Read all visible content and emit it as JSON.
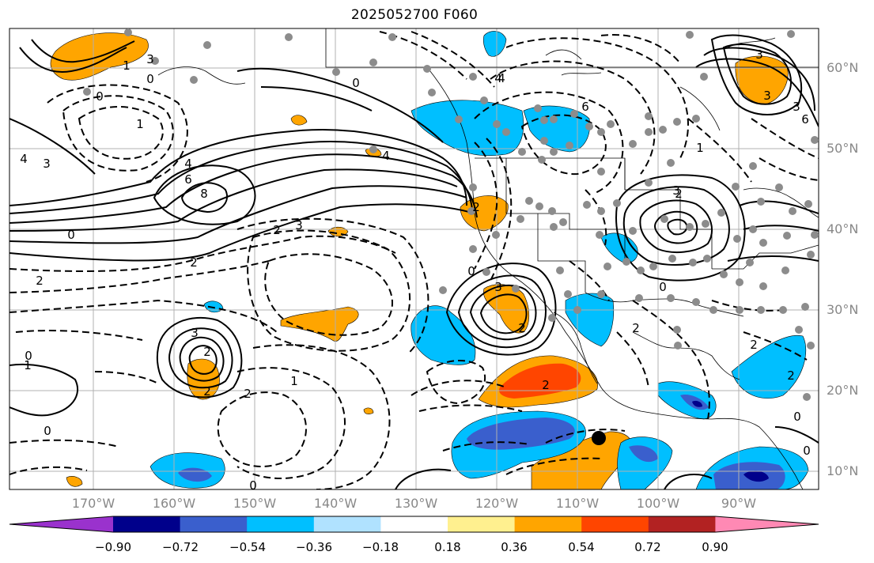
{
  "title": "2025052700 F060",
  "lat_labels": [
    "60°N",
    "50°N",
    "40°N",
    "30°N",
    "20°N",
    "10°N"
  ],
  "lon_labels": [
    "170°W",
    "160°W",
    "150°W",
    "140°W",
    "130°W",
    "120°W",
    "110°W",
    "100°W",
    "90°W"
  ],
  "colorbar": {
    "ticks": [
      "−0.90",
      "−0.72",
      "−0.54",
      "−0.36",
      "−0.18",
      "0.18",
      "0.36",
      "0.54",
      "0.72",
      "0.90"
    ],
    "colors": [
      "#9a32cd",
      "#00008b",
      "#3a5fcd",
      "#00bfff",
      "#b0e2ff",
      "#ffffff",
      "#fff08f",
      "#ffa500",
      "#ff4500",
      "#b22222",
      "#ff89b4"
    ]
  },
  "contour_labels": {
    "positive": [
      "3",
      "6",
      "8",
      "4",
      "3",
      "3",
      "6",
      "4",
      "3",
      "3",
      "3",
      "2",
      "2",
      "1",
      "6",
      "4",
      "3",
      "1"
    ],
    "negative": [
      "0",
      "0",
      "1",
      "3",
      "4",
      "0",
      "2",
      "2",
      "3",
      "0",
      "2",
      "1",
      "2",
      "0",
      "0",
      "2",
      "0",
      "2",
      "2",
      "2",
      "2",
      "0",
      "0",
      "4",
      "2",
      "2",
      "1",
      "0",
      "0"
    ]
  },
  "colors": {
    "orange": "#ffa500",
    "red": "#ff4500",
    "light_blue": "#00bfff",
    "royal_blue": "#3a5fcd",
    "navy": "#00008b",
    "yellow": "#fff08f",
    "station_gray": "#8c8c8c",
    "grid_gray": "#b0b0b0"
  }
}
